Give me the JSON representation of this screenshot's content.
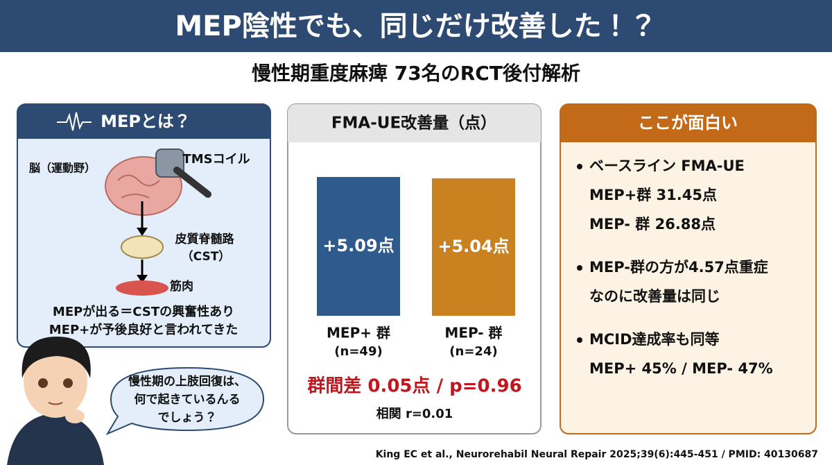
{
  "header": {
    "title": "MEP陰性でも、同じだけ改善した！？",
    "subtitle": "慢性期重度麻痺 73名のRCT後付解析"
  },
  "left_panel": {
    "title": "MEPとは？",
    "labels": [
      "脳（運動野）",
      "TMSコイル",
      "皮質脊髄路",
      "（CST）",
      "筋肉"
    ],
    "notes": [
      "MEPが出る＝CSTの興奮性あり",
      "MEP+が予後良好と言われてきた"
    ]
  },
  "speech_bubble": [
    "慢性期の上肢回復は、",
    "何で起きているんる",
    "でしょう？"
  ],
  "bar_chart": {
    "type": "bar",
    "title": "FMA-UE改善量（点）",
    "categories": [
      "MEP+ 群",
      "MEP- 群"
    ],
    "category_notes": [
      "(n=49)",
      "(n=24)"
    ],
    "values": [
      5.09,
      5.04
    ],
    "value_labels": [
      "+5.09点",
      "+5.04点"
    ],
    "colors": [
      "#2f5a8c",
      "#c9821f"
    ],
    "stats": [
      "群間差 0.05点 / p=0.96",
      "相関 r=0.01"
    ]
  },
  "right_panel": {
    "title": "ここが面白い",
    "bullets": [
      [
        "ベースライン FMA-UE",
        "MEP+群 31.45点",
        "MEP- 群 26.88点"
      ],
      [
        "MEP-群の方が4.57点重症",
        "なのに改善量は同じ"
      ],
      [
        "MCID達成率も同等",
        "MEP+ 45% / MEP- 47%"
      ]
    ]
  },
  "citation": "King EC et al., Neurorehabil Neural Repair 2025;39(6):445-451 / PMID: 40130687"
}
